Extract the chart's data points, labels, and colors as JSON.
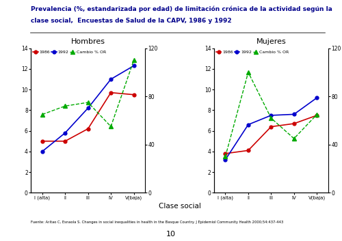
{
  "title_line1": "Prevalencia (%, estandarizada por edad) de limitación crónica de la actividad según la",
  "title_line2": "clase social,  Encuestas de Salud de la CAPV, 1986 y 1992",
  "title_color": "#00008B",
  "subtitle_hombres": "Hombres",
  "subtitle_mujeres": "Mujeres",
  "xlabel": "Clase social",
  "categories": [
    "I (alta)",
    "II",
    "III",
    "IV",
    "V(baja)"
  ],
  "hombres_1986": [
    5.0,
    5.0,
    6.2,
    9.7,
    9.5
  ],
  "hombres_1992": [
    4.0,
    5.8,
    8.2,
    11.0,
    12.3
  ],
  "hombres_cambio": [
    65,
    72,
    75,
    55,
    110
  ],
  "mujeres_1986": [
    3.8,
    4.1,
    6.4,
    6.7,
    7.5
  ],
  "mujeres_1992": [
    3.2,
    6.6,
    7.5,
    7.6,
    9.2
  ],
  "mujeres_cambio": [
    30,
    100,
    62,
    45,
    65
  ],
  "color_1986": "#CC0000",
  "color_1992": "#0000CC",
  "color_cambio": "#00AA00",
  "ylim_left": [
    0,
    14
  ],
  "ylim_right": [
    0,
    120
  ],
  "yticks_left": [
    0,
    2,
    4,
    6,
    8,
    10,
    12,
    14
  ],
  "yticks_right": [
    0,
    40,
    80,
    120
  ],
  "footnote": "Fuente: Aritao C, Esnaola S. Changes in social inequalities in health in the Basque Country. J Epidemiol Community Health 2000;54:437-443",
  "page_number": "10",
  "background_color": "#FFFFFF"
}
